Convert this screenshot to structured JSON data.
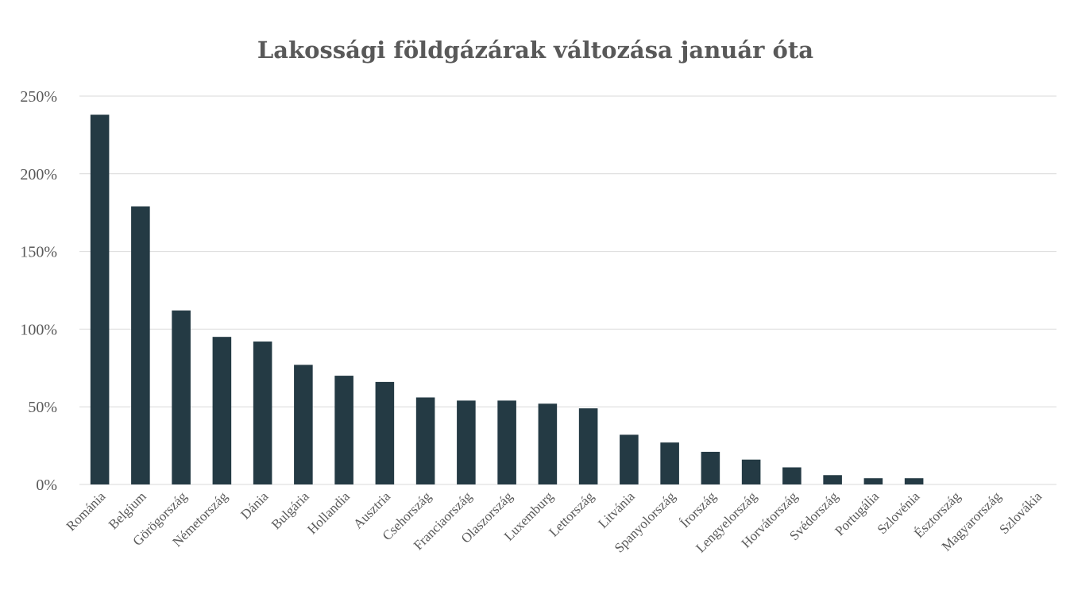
{
  "chart_data": {
    "type": "bar",
    "title": "Lakossági földgázárak változása január óta",
    "xlabel": "",
    "ylabel": "",
    "ylim": [
      0,
      250
    ],
    "yticks": [
      0,
      50,
      100,
      150,
      200,
      250
    ],
    "ytick_labels": [
      "0%",
      "50%",
      "100%",
      "150%",
      "200%",
      "250%"
    ],
    "grid": true,
    "bar_color": "#243a44",
    "categories": [
      "Románia",
      "Belgium",
      "Görögország",
      "Németország",
      "Dánia",
      "Bulgária",
      "Hollandia",
      "Ausztria",
      "Csehország",
      "Franciaország",
      "Olaszország",
      "Luxemburg",
      "Lettország",
      "Litvánia",
      "Spanyolország",
      "Írország",
      "Lengyelország",
      "Horvátország",
      "Svédország",
      "Portugália",
      "Szlovénia",
      "Észtország",
      "Magyarország",
      "Szlovákia"
    ],
    "values": [
      238,
      179,
      112,
      95,
      92,
      77,
      70,
      66,
      56,
      54,
      54,
      52,
      49,
      32,
      27,
      21,
      16,
      11,
      6,
      4,
      4,
      0,
      0,
      0
    ]
  }
}
